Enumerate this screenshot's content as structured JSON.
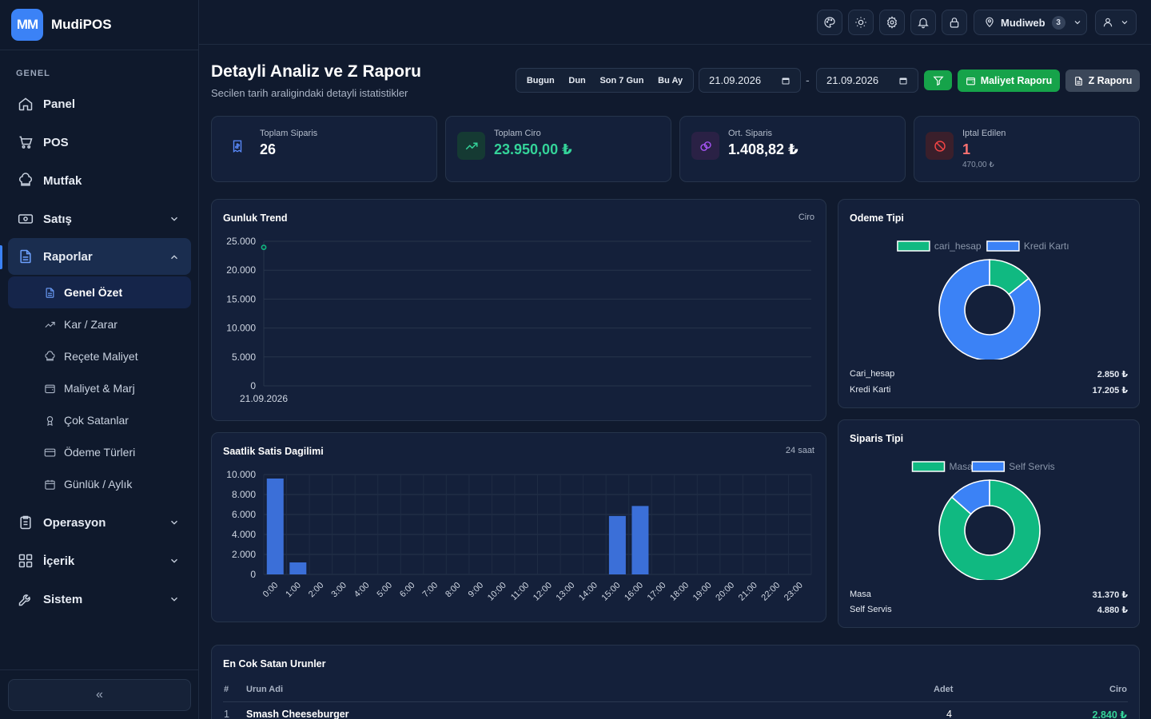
{
  "brand": {
    "logo": "MM",
    "name": "MudiPOS"
  },
  "sidebar": {
    "section_label": "GENEL",
    "items": [
      {
        "label": "Panel",
        "icon": "home-icon"
      },
      {
        "label": "POS",
        "icon": "cart-icon"
      },
      {
        "label": "Mutfak",
        "icon": "chef-hat-icon"
      },
      {
        "label": "Satış",
        "icon": "cash-icon"
      },
      {
        "label": "Raporlar",
        "icon": "document-icon"
      },
      {
        "label": "Operasyon",
        "icon": "clipboard-icon"
      },
      {
        "label": "İçerik",
        "icon": "grid-icon"
      },
      {
        "label": "Sistem",
        "icon": "wrench-icon"
      }
    ],
    "sub_items": [
      {
        "label": "Genel Özet",
        "icon": "document-icon"
      },
      {
        "label": "Kar / Zarar",
        "icon": "trend-up-icon"
      },
      {
        "label": "Reçete Maliyet",
        "icon": "chef-hat-icon"
      },
      {
        "label": "Maliyet & Marj",
        "icon": "wallet-icon"
      },
      {
        "label": "Çok Satanlar",
        "icon": "award-icon"
      },
      {
        "label": "Ödeme Türleri",
        "icon": "card-icon"
      },
      {
        "label": "Günlük / Aylık",
        "icon": "calendar-icon"
      }
    ],
    "collapse_label": "«"
  },
  "topbar": {
    "user": "Mudiweb",
    "badge": "3"
  },
  "header": {
    "title": "Detayli Analiz ve Z Raporu",
    "subtitle": "Secilen tarih araligindaki detayli istatistikler",
    "ranges": [
      "Bugun",
      "Dun",
      "Son 7 Gun",
      "Bu Ay"
    ],
    "date_from": "21.09.2026",
    "date_to": "21.09.2026",
    "date_separator": "-",
    "maliyet_label": "Maliyet Raporu",
    "z_label": "Z Raporu"
  },
  "stats": [
    {
      "label": "Toplam Siparis",
      "value": "26",
      "color": "#ffffff"
    },
    {
      "label": "Toplam Ciro",
      "value": "23.950,00 ₺",
      "color": "#34d399"
    },
    {
      "label": "Ort. Siparis",
      "value": "1.408,82 ₺",
      "color": "#ffffff"
    },
    {
      "label": "Iptal Edilen",
      "value": "1",
      "sub": "470,00 ₺",
      "color": "#f87171"
    }
  ],
  "trend": {
    "title": "Gunluk Trend",
    "tag": "Ciro"
  },
  "hourly": {
    "title": "Saatlik Satis Dagilimi",
    "tag": "24 saat"
  },
  "payment": {
    "title": "Odeme Tipi",
    "rows": [
      {
        "label": "Cari_hesap",
        "value": "2.850 ₺"
      },
      {
        "label": "Kredi Karti",
        "value": "17.205 ₺"
      }
    ]
  },
  "order_type": {
    "title": "Siparis Tipi",
    "rows": [
      {
        "label": "Masa",
        "value": "31.370 ₺"
      },
      {
        "label": "Self Servis",
        "value": "4.880 ₺"
      }
    ]
  },
  "top_products": {
    "title": "En Cok Satan Urunler",
    "headers": [
      "#",
      "Urun Adi",
      "Adet",
      "Ciro"
    ],
    "rows": [
      {
        "rank": "1",
        "name": "Smash Cheeseburger",
        "qty": "4",
        "revenue": "2.840 ₺"
      }
    ]
  },
  "chart_data": [
    {
      "type": "line",
      "title": "Gunluk Trend",
      "x": [
        "21.09.2026"
      ],
      "series": [
        {
          "name": "Ciro",
          "values": [
            23950
          ]
        }
      ],
      "ylim": [
        0,
        25000
      ],
      "yticks": [
        "25.000",
        "20.000",
        "15.000",
        "10.000",
        "5.000",
        "0"
      ],
      "color": "#10b981",
      "grid": true
    },
    {
      "type": "bar",
      "title": "Saatlik Satis Dagilimi",
      "categories": [
        "0:00",
        "1:00",
        "2:00",
        "3:00",
        "4:00",
        "5:00",
        "6:00",
        "7:00",
        "8:00",
        "9:00",
        "10:00",
        "11:00",
        "12:00",
        "13:00",
        "14:00",
        "15:00",
        "16:00",
        "17:00",
        "18:00",
        "19:00",
        "20:00",
        "21:00",
        "22:00",
        "23:00"
      ],
      "values": [
        9600,
        1200,
        0,
        0,
        0,
        0,
        0,
        0,
        0,
        0,
        0,
        0,
        0,
        0,
        0,
        5850,
        6850,
        0,
        0,
        0,
        0,
        0,
        0,
        0
      ],
      "ylim": [
        0,
        10000
      ],
      "yticks": [
        "10.000",
        "8.000",
        "6.000",
        "4.000",
        "2.000",
        "0"
      ],
      "color": "#3b6fd8",
      "grid": true
    },
    {
      "type": "pie",
      "title": "Odeme Tipi",
      "labels": [
        "cari_hesap",
        "Kredi Kartı"
      ],
      "values": [
        2850,
        17205
      ],
      "colors": [
        "#10b981",
        "#3b82f6"
      ],
      "legend": "top"
    },
    {
      "type": "pie",
      "title": "Siparis Tipi",
      "labels": [
        "Masa",
        "Self Servis"
      ],
      "values": [
        31370,
        4880
      ],
      "colors": [
        "#10b981",
        "#3b82f6"
      ],
      "legend": "top"
    }
  ]
}
